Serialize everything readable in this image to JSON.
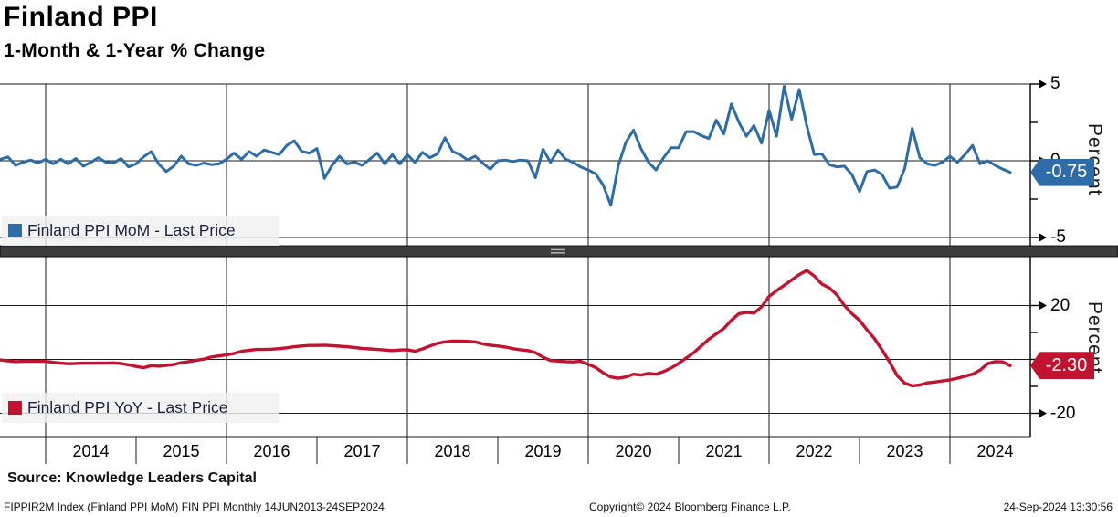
{
  "header": {
    "title": "Finland PPI",
    "subtitle": "1-Month & 1-Year % Change"
  },
  "colors": {
    "mom": "#2d6ca6",
    "yoy": "#c2122f",
    "divider": "#3c3c3c",
    "grip": "#b0b0b0",
    "legend_bg": "#f0f0f0"
  },
  "top_panel": {
    "legend": "Finland PPI MoM - Last Price",
    "badge": "-0.75",
    "axis_label": "Percent"
  },
  "bottom_panel": {
    "legend": "Finland PPI YoY - Last Price",
    "badge": "-2.30",
    "axis_label": "Percent"
  },
  "x_axis": {
    "years": [
      "2014",
      "2015",
      "2016",
      "2017",
      "2018",
      "2019",
      "2020",
      "2021",
      "2022",
      "2023",
      "2024"
    ]
  },
  "x_gridline_years": [
    2014,
    2016,
    2018,
    2020,
    2022,
    2024
  ],
  "footer": {
    "source": "Source: Knowledge Leaders Capital",
    "info_left": "FIPPIR2M Index (Finland PPI MoM) FIN PPI  Monthly 14JUN2013-24SEP2024",
    "info_center": "Copyright© 2024 Bloomberg Finance L.P.",
    "info_right": "24-Sep-2024 13:30:56"
  },
  "chart_data": [
    {
      "type": "line",
      "title": "Finland PPI MoM",
      "legend": "Finland PPI MoM - Last Price",
      "color_key": "mom",
      "last_price": -0.75,
      "ylabel": "Percent",
      "ylim": [
        -5,
        5
      ],
      "yticks": [
        5,
        0,
        -5
      ],
      "yticks_minor": [
        2.5,
        -2.5
      ],
      "x_start_year": 2013.5,
      "x_step_years": 0.0833333,
      "x_range_label": "14JUN2013-24SEP2024",
      "values": [
        0.1,
        0.25,
        -0.3,
        -0.1,
        0.05,
        -0.15,
        0.1,
        -0.2,
        0.1,
        -0.2,
        0.15,
        -0.35,
        -0.1,
        0.2,
        -0.1,
        -0.15,
        0.15,
        -0.4,
        -0.2,
        0.25,
        0.6,
        -0.2,
        -0.7,
        -0.35,
        0.3,
        -0.2,
        -0.3,
        -0.15,
        -0.25,
        -0.2,
        0.1,
        0.5,
        0.1,
        0.6,
        0.3,
        0.7,
        0.55,
        0.4,
        1.0,
        1.3,
        0.6,
        0.5,
        0.8,
        -1.15,
        -0.3,
        0.3,
        -0.2,
        -0.1,
        -0.3,
        0.1,
        0.5,
        -0.2,
        0.4,
        -0.2,
        0.4,
        -0.1,
        0.55,
        0.2,
        0.45,
        1.5,
        0.6,
        0.4,
        0.05,
        0.3,
        -0.15,
        -0.55,
        0.0,
        0.05,
        -0.05,
        0.05,
        0.0,
        -1.1,
        0.75,
        -0.1,
        0.7,
        0.1,
        -0.1,
        -0.4,
        -0.6,
        -0.85,
        -1.6,
        -2.9,
        -0.3,
        1.2,
        2.0,
        0.8,
        -0.1,
        -0.6,
        0.2,
        0.85,
        0.85,
        1.9,
        1.9,
        1.65,
        1.45,
        2.65,
        1.75,
        3.7,
        2.5,
        1.6,
        2.3,
        1.15,
        3.3,
        1.6,
        4.85,
        2.7,
        4.65,
        2.3,
        0.4,
        0.45,
        -0.25,
        -0.4,
        -0.35,
        -0.9,
        -2.0,
        -0.7,
        -0.6,
        -0.9,
        -1.8,
        -1.7,
        -0.5,
        2.1,
        0.2,
        -0.2,
        -0.3,
        -0.1,
        0.3,
        -0.1,
        0.4,
        1.0,
        -0.2,
        0.0,
        -0.3,
        -0.55,
        -0.75
      ]
    },
    {
      "type": "line",
      "title": "Finland PPI YoY",
      "legend": "Finland PPI YoY - Last Price",
      "color_key": "yoy",
      "last_price": -2.3,
      "ylabel": "Percent",
      "ylim": [
        -30,
        37
      ],
      "yticks": [
        20,
        0,
        -20
      ],
      "yticks_minor": [
        10,
        -10
      ],
      "x_start_year": 2013.5,
      "x_step_years": 0.0833333,
      "x_range_label": "14JUN2013-24SEP2024",
      "values": [
        -0.2,
        -0.5,
        -0.8,
        -0.7,
        -0.7,
        -0.7,
        -0.7,
        -1.1,
        -1.4,
        -1.6,
        -1.5,
        -1.4,
        -1.4,
        -1.4,
        -1.4,
        -1.3,
        -1.5,
        -2.0,
        -2.6,
        -3.1,
        -2.3,
        -2.5,
        -2.2,
        -1.9,
        -1.2,
        -0.8,
        -0.3,
        0.1,
        0.9,
        1.3,
        1.7,
        2.2,
        3.0,
        3.4,
        3.7,
        3.7,
        3.8,
        4.0,
        4.3,
        4.7,
        5.0,
        5.2,
        5.2,
        5.3,
        5.1,
        4.9,
        4.7,
        4.4,
        4.1,
        3.9,
        3.7,
        3.5,
        3.3,
        3.5,
        3.6,
        3.0,
        3.9,
        5.0,
        6.0,
        6.5,
        6.8,
        6.8,
        6.7,
        6.5,
        5.8,
        5.3,
        5.0,
        4.6,
        4.0,
        3.6,
        3.3,
        2.5,
        0.8,
        -0.4,
        -0.6,
        -0.8,
        -0.9,
        -0.7,
        -1.8,
        -3.0,
        -5.0,
        -6.5,
        -7.0,
        -6.5,
        -5.5,
        -5.8,
        -5.2,
        -5.5,
        -4.5,
        -3.2,
        -1.5,
        0.5,
        2.5,
        5.0,
        7.5,
        9.5,
        11.5,
        14.5,
        17.0,
        17.5,
        17.2,
        19.5,
        23.4,
        25.5,
        27.5,
        29.5,
        31.5,
        33.0,
        31.0,
        28.0,
        26.5,
        24.0,
        20.0,
        17.0,
        14.5,
        11.0,
        7.7,
        3.5,
        -1.0,
        -6.0,
        -8.8,
        -9.8,
        -9.5,
        -8.7,
        -8.4,
        -8.0,
        -7.6,
        -7.0,
        -6.2,
        -5.5,
        -4.0,
        -1.6,
        -0.8,
        -0.9,
        -2.3
      ]
    }
  ]
}
